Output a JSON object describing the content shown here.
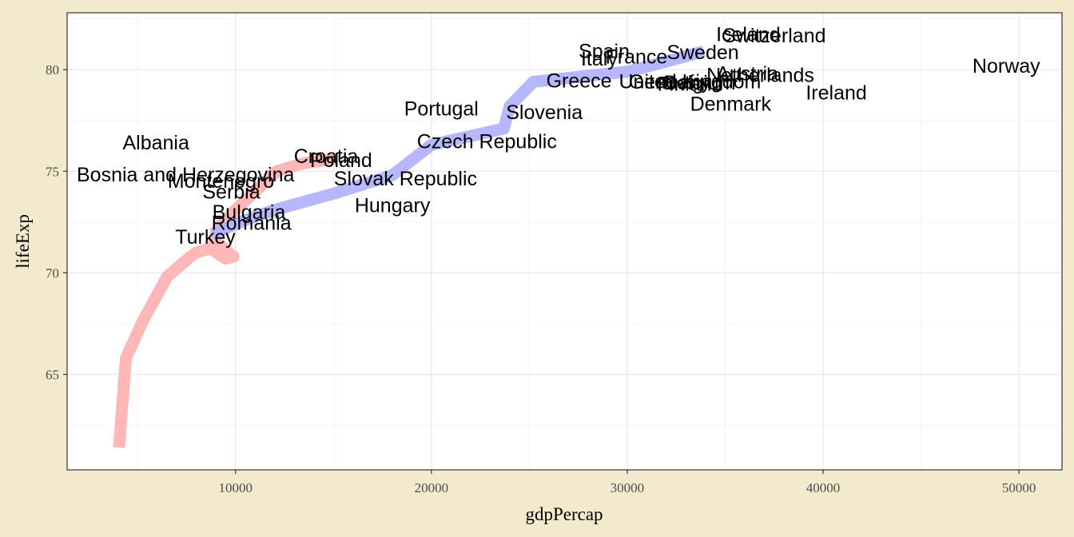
{
  "chart_data": {
    "type": "line",
    "title": "",
    "xlabel": "gdpPercap",
    "ylabel": "lifeExp",
    "xlim": [
      1400,
      52200
    ],
    "ylim": [
      60.3,
      82.8
    ],
    "xticks": [
      10000,
      20000,
      30000,
      40000,
      50000
    ],
    "yticks": [
      65,
      70,
      75,
      80
    ],
    "grid": true,
    "series": [
      {
        "color": "#ffb3b3",
        "x": [
          4050,
          4400,
          5250,
          6500,
          7700,
          8000,
          8700,
          9500,
          9900,
          9900,
          8900,
          9100,
          10000,
          11000,
          12100,
          13500,
          15100
        ],
        "y": [
          61.4,
          65.8,
          67.6,
          69.8,
          70.8,
          71.0,
          71.2,
          70.7,
          70.8,
          70.8,
          71.6,
          72.2,
          73.1,
          74.0,
          75.0,
          75.4,
          75.6
        ]
      },
      {
        "color": "#b3b3ff",
        "x": [
          8800,
          10500,
          12000,
          15000,
          18000,
          20000,
          23700,
          24000,
          25200,
          28000,
          30000,
          32000,
          33900
        ],
        "y": [
          71.9,
          72.6,
          73.1,
          73.9,
          74.8,
          76.3,
          77.1,
          78.2,
          79.4,
          79.7,
          79.9,
          80.4,
          80.9
        ]
      }
    ],
    "annotations": [
      {
        "text": "Norway",
        "x": 49357,
        "y": 80.2
      },
      {
        "text": "Iceland",
        "x": 36181,
        "y": 81.76
      },
      {
        "text": "Switzerland",
        "x": 37506,
        "y": 81.7
      },
      {
        "text": "Sweden",
        "x": 33860,
        "y": 80.88
      },
      {
        "text": "Spain",
        "x": 28821,
        "y": 80.94
      },
      {
        "text": "Italy",
        "x": 28570,
        "y": 80.55
      },
      {
        "text": "France",
        "x": 30470,
        "y": 80.66
      },
      {
        "text": "Austria",
        "x": 36126,
        "y": 79.83
      },
      {
        "text": "Netherlands",
        "x": 36798,
        "y": 79.76
      },
      {
        "text": "Ireland",
        "x": 40676,
        "y": 78.89
      },
      {
        "text": "Greece",
        "x": 27538,
        "y": 79.48
      },
      {
        "text": "United Kingdom",
        "x": 33203,
        "y": 79.43
      },
      {
        "text": "Germany",
        "x": 32170,
        "y": 79.41
      },
      {
        "text": "Belgium",
        "x": 33693,
        "y": 79.37
      },
      {
        "text": "Finland",
        "x": 33207,
        "y": 79.31
      },
      {
        "text": "Denmark",
        "x": 35278,
        "y": 78.33
      },
      {
        "text": "Portugal",
        "x": 20510,
        "y": 78.1
      },
      {
        "text": "Slovenia",
        "x": 25768,
        "y": 77.93
      },
      {
        "text": "Czech Republic",
        "x": 22833,
        "y": 76.49
      },
      {
        "text": "Albania",
        "x": 5937,
        "y": 76.42
      },
      {
        "text": "Croatia",
        "x": 14619,
        "y": 75.75
      },
      {
        "text": "Poland",
        "x": 15390,
        "y": 75.56
      },
      {
        "text": "Bosnia and Herzegovina",
        "x": 7446,
        "y": 74.85
      },
      {
        "text": "Montenegro",
        "x": 9254,
        "y": 74.54
      },
      {
        "text": "Slovak Republic",
        "x": 18678,
        "y": 74.66
      },
      {
        "text": "Serbia",
        "x": 9787,
        "y": 74.0
      },
      {
        "text": "Hungary",
        "x": 18009,
        "y": 73.34
      },
      {
        "text": "Bulgaria",
        "x": 10681,
        "y": 73.0
      },
      {
        "text": "Romania",
        "x": 10808,
        "y": 72.48
      },
      {
        "text": "Turkey",
        "x": 8458,
        "y": 71.78
      }
    ]
  },
  "colors": {
    "background": "#f3e9cc",
    "panel": "#ffffff",
    "grid_major": "#ebebeb",
    "grid_minor": "#f5f5f5",
    "border": "#333333",
    "text": "#000000",
    "tick_text": "#4d4d4d"
  }
}
